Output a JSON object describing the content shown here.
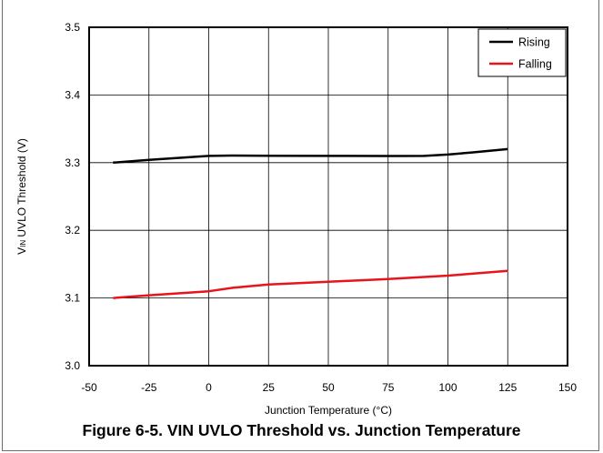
{
  "chart_data": {
    "type": "line",
    "title": "",
    "xlabel": "Junction Temperature (°C)",
    "ylabel_main": "V",
    "ylabel_sub": "IN",
    "ylabel_rest": " UVLO Threshold (V)",
    "xlim": [
      -50,
      150
    ],
    "ylim": [
      3.0,
      3.5
    ],
    "x_ticks": [
      -50,
      -25,
      0,
      25,
      50,
      75,
      100,
      125,
      150
    ],
    "y_ticks": [
      3.0,
      3.1,
      3.2,
      3.3,
      3.4,
      3.5
    ],
    "x_tick_labels": [
      "-50",
      "-25",
      "0",
      "25",
      "50",
      "75",
      "100",
      "125",
      "150"
    ],
    "y_tick_labels": [
      "3.0",
      "3.1",
      "3.2",
      "3.3",
      "3.4",
      "3.5"
    ],
    "grid": true,
    "legend_position": "top-right",
    "series": [
      {
        "name": "Rising",
        "color": "#000000",
        "x": [
          -40,
          -25,
          0,
          10,
          25,
          50,
          75,
          90,
          100,
          110,
          125
        ],
        "y": [
          3.3,
          3.304,
          3.31,
          3.3105,
          3.3102,
          3.31,
          3.3098,
          3.31,
          3.312,
          3.315,
          3.32
        ]
      },
      {
        "name": "Falling",
        "color": "#e8141c",
        "x": [
          -40,
          -25,
          0,
          10,
          25,
          50,
          75,
          100,
          125
        ],
        "y": [
          3.1,
          3.104,
          3.11,
          3.115,
          3.12,
          3.124,
          3.128,
          3.133,
          3.14
        ]
      }
    ]
  },
  "caption": "Figure 6-5. VIN UVLO Threshold vs. Junction Temperature"
}
